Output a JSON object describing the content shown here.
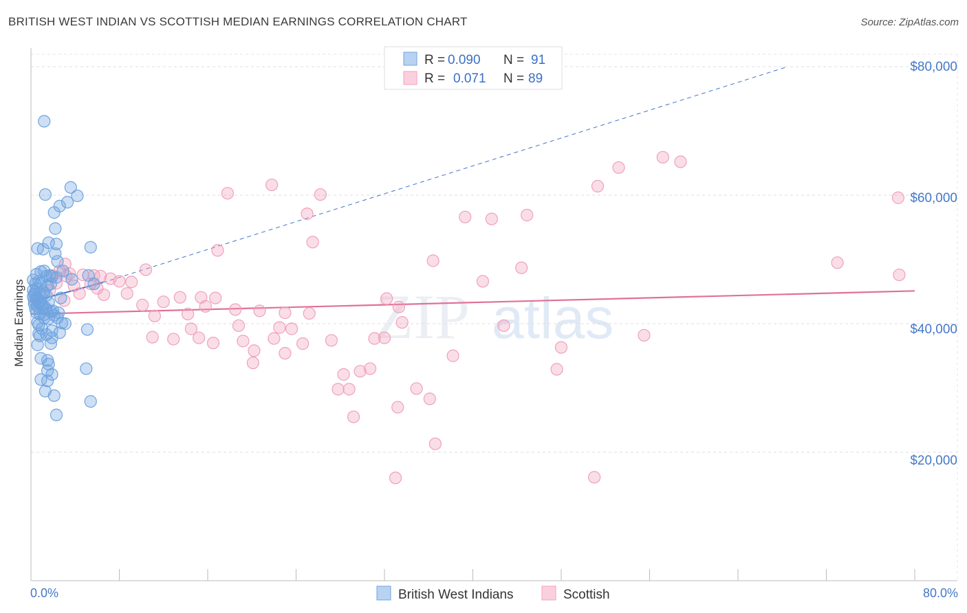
{
  "header": {
    "title": "BRITISH WEST INDIAN VS SCOTTISH MEDIAN EARNINGS CORRELATION CHART",
    "source": "Source: ZipAtlas.com"
  },
  "legend_box": {
    "rows": [
      {
        "r_label": "R =",
        "r_value": "0.090",
        "n_label": "N =",
        "n_value": "91"
      },
      {
        "r_label": "R =",
        "r_value": "0.071",
        "n_label": "N =",
        "n_value": "89"
      }
    ]
  },
  "watermark": {
    "zip": "ZIP",
    "atlas": "atlas"
  },
  "colors": {
    "blue": "#6fa4e0",
    "blue_line": "#3f73c8",
    "pink": "#f0a0ba",
    "pink_line": "#e07098",
    "tick_text": "#4478c8"
  },
  "chart_data": {
    "type": "scatter",
    "title": "BRITISH WEST INDIAN VS SCOTTISH MEDIAN EARNINGS CORRELATION CHART",
    "xlabel": "",
    "ylabel": "Median Earnings",
    "xlim": [
      0,
      80
    ],
    "ylim": [
      0,
      82000
    ],
    "y_ticks": [
      20000,
      40000,
      60000,
      80000
    ],
    "y_tick_labels": [
      "$20,000",
      "$40,000",
      "$60,000",
      "$80,000"
    ],
    "x_tick_labels": [
      "0.0%",
      "80.0%"
    ],
    "legend_position": "bottom-center",
    "series": [
      {
        "name": "British West Indians",
        "color": "#6fa4e0",
        "r": 0.09,
        "n": 91,
        "trend_solid": [
          [
            0,
            43400
          ],
          [
            6.5,
            46400
          ]
        ],
        "trend_dashed": [
          [
            6.5,
            46400
          ],
          [
            68.5,
            80000
          ]
        ],
        "points": [
          [
            1.2,
            71500
          ],
          [
            1.3,
            60100
          ],
          [
            3.6,
            61200
          ],
          [
            4.2,
            59900
          ],
          [
            3.3,
            58900
          ],
          [
            2.6,
            58300
          ],
          [
            2.1,
            57300
          ],
          [
            2.2,
            54800
          ],
          [
            1.6,
            52600
          ],
          [
            2.3,
            52400
          ],
          [
            5.4,
            51900
          ],
          [
            0.6,
            51700
          ],
          [
            1.1,
            51600
          ],
          [
            2.2,
            50900
          ],
          [
            2.4,
            49700
          ],
          [
            1.2,
            48200
          ],
          [
            0.5,
            47700
          ],
          [
            1.4,
            47400
          ],
          [
            1.7,
            47500
          ],
          [
            2.3,
            47200
          ],
          [
            3.7,
            46900
          ],
          [
            5.2,
            47500
          ],
          [
            0.4,
            46200
          ],
          [
            0.7,
            46600
          ],
          [
            0.9,
            46300
          ],
          [
            1.5,
            45900
          ],
          [
            5.7,
            46200
          ],
          [
            0.2,
            45200
          ],
          [
            0.4,
            44900
          ],
          [
            0.8,
            44800
          ],
          [
            1.2,
            44700
          ],
          [
            0.2,
            44200
          ],
          [
            0.5,
            43800
          ],
          [
            0.9,
            43500
          ],
          [
            1.6,
            43300
          ],
          [
            0.3,
            43100
          ],
          [
            0.6,
            42700
          ],
          [
            1.1,
            42400
          ],
          [
            1.4,
            42200
          ],
          [
            1.8,
            41900
          ],
          [
            0.5,
            41700
          ],
          [
            0.8,
            41500
          ],
          [
            1.2,
            41400
          ],
          [
            2.1,
            41300
          ],
          [
            2.5,
            41700
          ],
          [
            2.4,
            40900
          ],
          [
            1.6,
            40800
          ],
          [
            2.8,
            40100
          ],
          [
            0.7,
            39800
          ],
          [
            1.0,
            39200
          ],
          [
            1.9,
            38900
          ],
          [
            2.6,
            38600
          ],
          [
            5.1,
            39100
          ],
          [
            0.8,
            38100
          ],
          [
            1.9,
            37800
          ],
          [
            0.6,
            36700
          ],
          [
            1.8,
            36900
          ],
          [
            0.9,
            34600
          ],
          [
            1.5,
            34300
          ],
          [
            1.6,
            33700
          ],
          [
            5.0,
            33000
          ],
          [
            1.5,
            32700
          ],
          [
            1.9,
            32100
          ],
          [
            0.9,
            31300
          ],
          [
            1.5,
            31100
          ],
          [
            1.3,
            29500
          ],
          [
            2.1,
            28800
          ],
          [
            5.4,
            27900
          ],
          [
            2.3,
            25800
          ],
          [
            1.4,
            44400
          ],
          [
            0.3,
            44600
          ],
          [
            0.7,
            43200
          ],
          [
            1.0,
            42900
          ],
          [
            1.3,
            42500
          ],
          [
            0.4,
            42300
          ],
          [
            2.0,
            42000
          ],
          [
            0.6,
            40200
          ],
          [
            1.4,
            38300
          ],
          [
            0.2,
            46800
          ],
          [
            0.5,
            45500
          ],
          [
            1.9,
            47300
          ],
          [
            2.9,
            48200
          ],
          [
            0.9,
            48100
          ],
          [
            0.3,
            43600
          ],
          [
            1.2,
            40900
          ],
          [
            0.7,
            38400
          ],
          [
            1.8,
            46200
          ],
          [
            2.7,
            44000
          ],
          [
            0.5,
            44000
          ],
          [
            1.1,
            45000
          ],
          [
            3.1,
            40000
          ]
        ]
      },
      {
        "name": "Scottish",
        "color": "#f0a0ba",
        "r": 0.071,
        "n": 89,
        "trend_solid": [
          [
            0,
            41500
          ],
          [
            80,
            45100
          ]
        ],
        "points": [
          [
            57.2,
            65900
          ],
          [
            58.8,
            65200
          ],
          [
            53.2,
            64300
          ],
          [
            21.8,
            61600
          ],
          [
            51.3,
            61400
          ],
          [
            17.8,
            60300
          ],
          [
            26.2,
            60100
          ],
          [
            78.5,
            59600
          ],
          [
            25.0,
            57100
          ],
          [
            39.3,
            56600
          ],
          [
            41.7,
            56300
          ],
          [
            44.9,
            56900
          ],
          [
            25.5,
            52700
          ],
          [
            16.9,
            51400
          ],
          [
            36.4,
            49800
          ],
          [
            73.0,
            49500
          ],
          [
            3.1,
            49300
          ],
          [
            10.4,
            48400
          ],
          [
            44.4,
            48700
          ],
          [
            2.6,
            48200
          ],
          [
            4.7,
            47600
          ],
          [
            1.9,
            47500
          ],
          [
            3.2,
            47400
          ],
          [
            5.7,
            47500
          ],
          [
            6.3,
            47400
          ],
          [
            7.2,
            47000
          ],
          [
            8.0,
            46600
          ],
          [
            2.3,
            46300
          ],
          [
            3.9,
            45900
          ],
          [
            6.0,
            45500
          ],
          [
            9.1,
            46500
          ],
          [
            1.7,
            45200
          ],
          [
            4.4,
            44700
          ],
          [
            6.6,
            44500
          ],
          [
            8.7,
            44700
          ],
          [
            13.5,
            44100
          ],
          [
            15.4,
            44100
          ],
          [
            3.0,
            43600
          ],
          [
            32.2,
            43900
          ],
          [
            10.1,
            42900
          ],
          [
            15.8,
            42700
          ],
          [
            18.5,
            42200
          ],
          [
            20.7,
            42000
          ],
          [
            23.0,
            41700
          ],
          [
            25.2,
            41600
          ],
          [
            11.2,
            41200
          ],
          [
            14.2,
            41500
          ],
          [
            33.3,
            42600
          ],
          [
            14.5,
            39200
          ],
          [
            18.8,
            39700
          ],
          [
            22.5,
            39400
          ],
          [
            23.6,
            39200
          ],
          [
            33.6,
            40200
          ],
          [
            42.8,
            39700
          ],
          [
            11.0,
            37900
          ],
          [
            12.9,
            37600
          ],
          [
            15.2,
            37800
          ],
          [
            19.2,
            37300
          ],
          [
            22.0,
            37700
          ],
          [
            24.6,
            36900
          ],
          [
            27.2,
            37400
          ],
          [
            31.1,
            37700
          ],
          [
            32.0,
            37800
          ],
          [
            16.5,
            37000
          ],
          [
            20.2,
            35800
          ],
          [
            23.0,
            35400
          ],
          [
            48.0,
            36300
          ],
          [
            55.5,
            38200
          ],
          [
            40.9,
            46600
          ],
          [
            38.2,
            35000
          ],
          [
            20.1,
            33900
          ],
          [
            29.8,
            32600
          ],
          [
            30.7,
            33000
          ],
          [
            47.6,
            32900
          ],
          [
            28.3,
            32100
          ],
          [
            27.8,
            29800
          ],
          [
            28.8,
            29800
          ],
          [
            34.9,
            29900
          ],
          [
            36.1,
            28300
          ],
          [
            33.2,
            27000
          ],
          [
            29.2,
            25500
          ],
          [
            36.6,
            21300
          ],
          [
            33.0,
            16000
          ],
          [
            51.0,
            16100
          ],
          [
            78.6,
            47600
          ],
          [
            12.0,
            43400
          ],
          [
            16.7,
            44000
          ],
          [
            3.5,
            47800
          ],
          [
            5.4,
            46200
          ]
        ]
      }
    ]
  },
  "bottom_legend": {
    "items": [
      "British West Indians",
      "Scottish"
    ]
  }
}
